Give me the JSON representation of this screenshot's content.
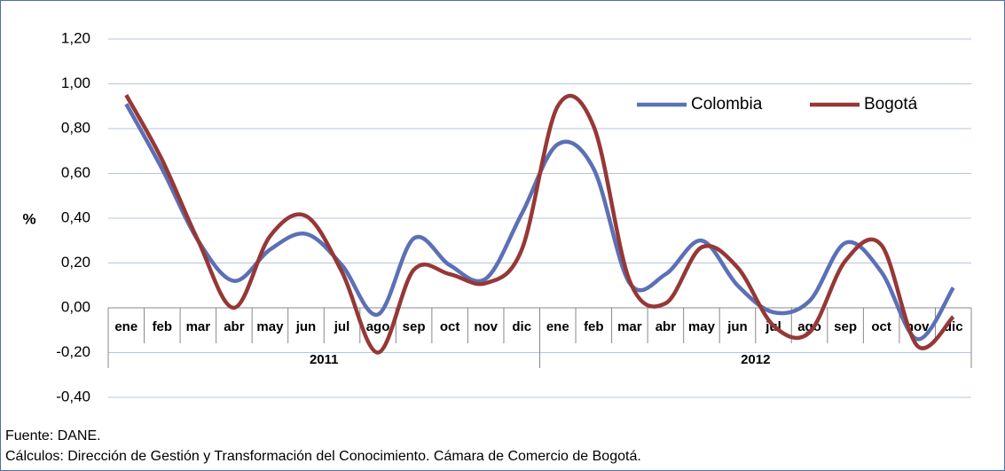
{
  "chart_data": {
    "type": "line",
    "ylabel": "%",
    "categories": [
      "ene",
      "feb",
      "mar",
      "abr",
      "may",
      "jun",
      "jul",
      "ago",
      "sep",
      "oct",
      "nov",
      "dic",
      "ene",
      "feb",
      "mar",
      "abr",
      "may",
      "jun",
      "jul",
      "ago",
      "sep",
      "oct",
      "nov",
      "dic"
    ],
    "category_groups": [
      {
        "label": "2011",
        "size": 12
      },
      {
        "label": "2012",
        "size": 12
      }
    ],
    "series": [
      {
        "name": "Colombia",
        "color": "#5b70b5",
        "values": [
          0.91,
          0.62,
          0.3,
          0.12,
          0.26,
          0.33,
          0.19,
          -0.03,
          0.31,
          0.19,
          0.13,
          0.42,
          0.73,
          0.62,
          0.11,
          0.15,
          0.3,
          0.1,
          -0.02,
          0.03,
          0.29,
          0.16,
          -0.14,
          0.09
        ]
      },
      {
        "name": "Bogotá",
        "color": "#953836",
        "values": [
          0.95,
          0.66,
          0.3,
          0.0,
          0.32,
          0.41,
          0.16,
          -0.2,
          0.17,
          0.15,
          0.11,
          0.26,
          0.9,
          0.81,
          0.12,
          0.02,
          0.27,
          0.18,
          -0.08,
          -0.11,
          0.21,
          0.28,
          -0.17,
          -0.04
        ]
      }
    ],
    "ylim": [
      -0.4,
      1.2
    ],
    "yticks": [
      {
        "value": -0.4,
        "label": "-0,40"
      },
      {
        "value": -0.2,
        "label": "-0,20"
      },
      {
        "value": 0,
        "label": "0,00"
      },
      {
        "value": 0.2,
        "label": "0,20"
      },
      {
        "value": 0.4,
        "label": "0,40"
      },
      {
        "value": 0.6,
        "label": "0,60"
      },
      {
        "value": 0.8,
        "label": "0,80"
      },
      {
        "value": 1.0,
        "label": "1,00"
      },
      {
        "value": 1.2,
        "label": "1,20"
      }
    ],
    "grid": true,
    "legend": "top-right",
    "notes": [
      "Fuente: DANE.",
      "Cálculos: Dirección de Gestión y Transformación del Conocimiento. Cámara de Comercio de Bogotá."
    ]
  }
}
